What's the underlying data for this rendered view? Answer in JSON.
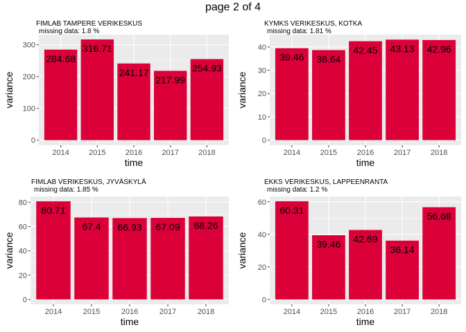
{
  "page": {
    "title": "page 2 of 4"
  },
  "colors": {
    "bar": "#dc0039",
    "panel_bg": "#ebebeb",
    "grid_major": "#ffffff",
    "tick_text": "#4d4d4d"
  },
  "chart_data": [
    {
      "type": "bar",
      "title": "FIMLAB TAMPERE VERIKESKUS",
      "subtitle": "missing data:  1.8 %",
      "xlabel": "time",
      "ylabel": "variance",
      "categories": [
        "2014",
        "2015",
        "2016",
        "2017",
        "2018"
      ],
      "values": [
        284.68,
        316.71,
        241.17,
        217.99,
        254.93
      ],
      "value_labels": [
        "284.68",
        "316.71",
        "241.17",
        "217.99",
        "254.93"
      ],
      "yticks": [
        0,
        100,
        200,
        300
      ],
      "ylim": [
        -16,
        332
      ],
      "grid": true
    },
    {
      "type": "bar",
      "title": "KYMKS VERIKESKUS, KOTKA",
      "subtitle": "missing data:  1.81 %",
      "xlabel": "time",
      "ylabel": "variance",
      "categories": [
        "2014",
        "2015",
        "2016",
        "2017",
        "2018"
      ],
      "values": [
        39.46,
        38.64,
        42.45,
        43.13,
        42.96
      ],
      "value_labels": [
        "39.46",
        "38.64",
        "42.45",
        "43.13",
        "42.96"
      ],
      "yticks": [
        0,
        10,
        20,
        30,
        40
      ],
      "ylim": [
        -2.2,
        45.3
      ],
      "grid": true
    },
    {
      "type": "bar",
      "title": "FIMLAB VERIKESKUS, JYVÄSKYLÄ",
      "subtitle": "missing data:  1.85 %",
      "xlabel": "time",
      "ylabel": "variance",
      "categories": [
        "2014",
        "2015",
        "2016",
        "2017",
        "2018"
      ],
      "values": [
        80.71,
        67.4,
        66.93,
        67.09,
        68.26
      ],
      "value_labels": [
        "80.71",
        "67.4",
        "66.93",
        "67.09",
        "68.26"
      ],
      "yticks": [
        0,
        20,
        40,
        60,
        80
      ],
      "ylim": [
        -4.05,
        84.75
      ],
      "grid": true
    },
    {
      "type": "bar",
      "title": "EKKS VERIKESKUS, LAPPEENRANTA",
      "subtitle": "missing data:  1.2 %",
      "xlabel": "time",
      "ylabel": "variance",
      "categories": [
        "2014",
        "2015",
        "2016",
        "2017",
        "2018"
      ],
      "values": [
        60.31,
        39.46,
        42.69,
        36.14,
        56.68
      ],
      "value_labels": [
        "60.31",
        "39.46",
        "42.69",
        "36.14",
        "56.68"
      ],
      "yticks": [
        0,
        20,
        40,
        60
      ],
      "ylim": [
        -3.0,
        63.3
      ],
      "grid": true
    }
  ]
}
